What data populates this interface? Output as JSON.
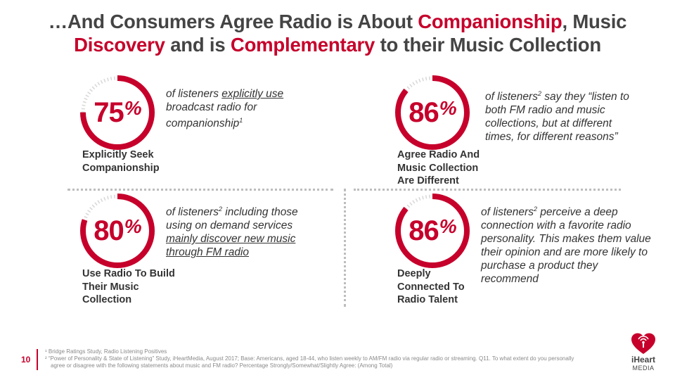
{
  "title": {
    "line1_a": "…And Consumers Agree Radio is About ",
    "line1_accent": "Companionship",
    "line1_b": ", Music",
    "line2_accent1": "Discovery",
    "line2_a": " and is ",
    "line2_accent2": "Complementary",
    "line2_b": " to their Music Collection"
  },
  "stats": [
    {
      "number": "75",
      "percent_sign": "%",
      "fraction": 0.75,
      "desc_a": "of listeners ",
      "desc_underlined": "explicitly use",
      "desc_b": " broadcast radio for companionship",
      "desc_sup": "1",
      "label": "Explicitly Seek Companionship"
    },
    {
      "number": "86",
      "percent_sign": "%",
      "fraction": 0.86,
      "desc_a": "of listeners",
      "desc_sup": "2",
      "desc_b": " say they “listen to both FM radio and music collections, but at different times, for different reasons”",
      "label": "Agree Radio And Music Collection Are Different"
    },
    {
      "number": "80",
      "percent_sign": "%",
      "fraction": 0.8,
      "desc_a": "of listeners",
      "desc_sup": "2",
      "desc_b": " including those using on demand services ",
      "desc_underlined": "mainly discover new music through FM radio",
      "label": "Use Radio To Build Their Music Collection"
    },
    {
      "number": "86",
      "percent_sign": "%",
      "fraction": 0.86,
      "desc_a": "of listeners",
      "desc_sup": "2",
      "desc_b": " perceive a deep connection with a favorite radio personality. This makes them value their opinion and are more likely to purchase a product they recommend",
      "label": "Deeply Connected To Radio Talent"
    }
  ],
  "footer": {
    "page_number": "10",
    "note1": "¹ Bridge Ratings Study, Radio Listening Positives",
    "note2_a": "² “Power of Personality & State of Listening” Study, iHeartMedia, August 2017; Base: Americans, aged 18-44, who listen weekly to AM/FM radio via regular radio or streaming. Q11. To what extent do you personally",
    "note2_b": "agree or disagree with the following statements about music and FM radio? Percentage Strongly/Somewhat/Slightly Agree: (Among Total)"
  },
  "logo": {
    "line1": "iHeart",
    "line2": "MEDIA",
    "icon": "iheart-logo-icon"
  },
  "colors": {
    "accent": "#c6002b",
    "ring_track": "#d9d9d9",
    "text": "#333333"
  }
}
